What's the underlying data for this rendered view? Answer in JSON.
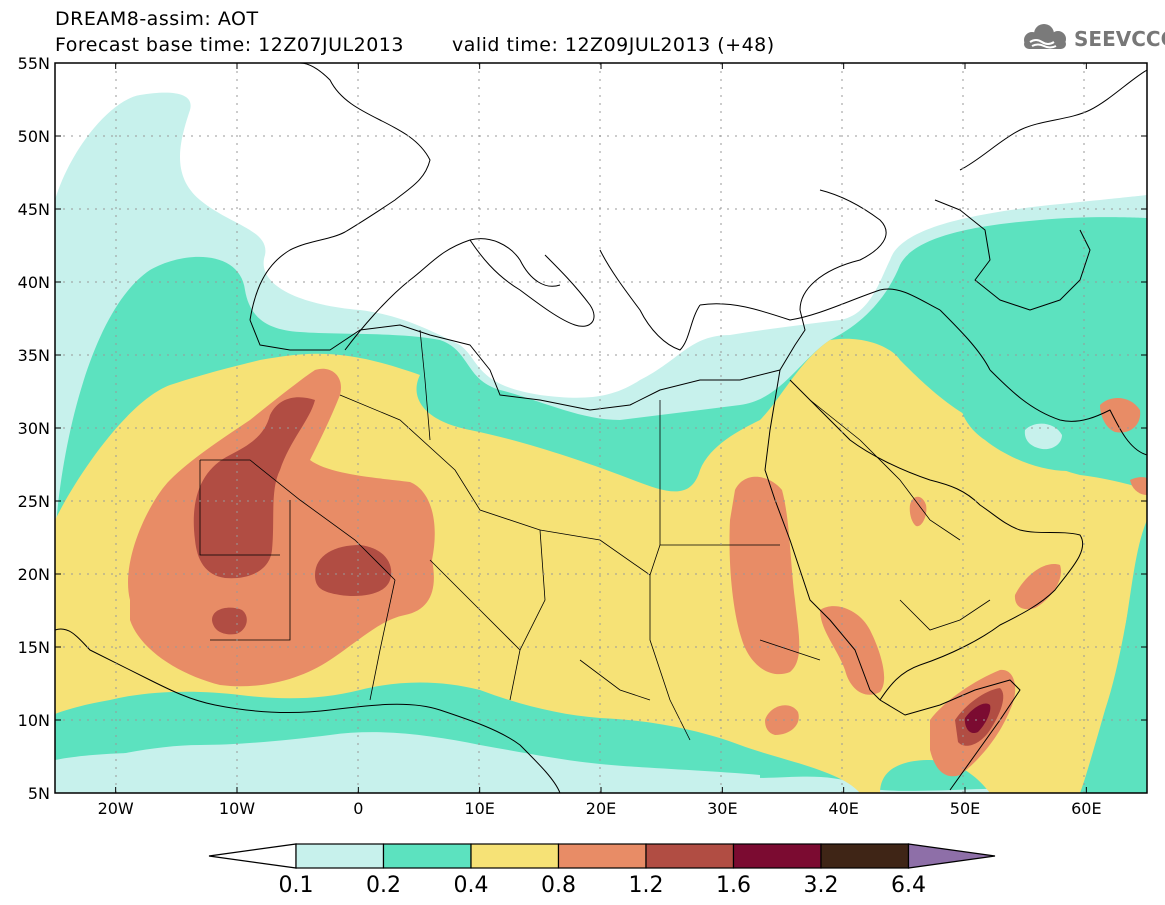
{
  "header": {
    "title_line1": "DREAM8-assim: AOT",
    "base_time_label": "Forecast base time: 12Z07JUL2013",
    "valid_time_label": "valid time: 12Z09JUL2013 (+48)"
  },
  "logo": {
    "text": "SEEVCCC",
    "icon": "cloud-icon"
  },
  "map": {
    "lon_range": [
      -25,
      65
    ],
    "lat_range": [
      5,
      55
    ],
    "lat_ticks": [
      "55N",
      "50N",
      "45N",
      "40N",
      "35N",
      "30N",
      "25N",
      "20N",
      "15N",
      "10N",
      "5N"
    ],
    "lon_ticks": [
      "20W",
      "10W",
      "0",
      "10E",
      "20E",
      "30E",
      "40E",
      "50E",
      "60E"
    ]
  },
  "legend": {
    "levels": [
      "0.1",
      "0.2",
      "0.4",
      "0.8",
      "1.2",
      "1.6",
      "3.2",
      "6.4"
    ],
    "colors": {
      "below": "#ffffff",
      "c1": "#c7f1ec",
      "c2": "#5ce2bf",
      "c3": "#f6e276",
      "c4": "#e88c66",
      "c5": "#b14d43",
      "c6": "#7b0b31",
      "c7": "#3f2516",
      "above": "#8e6fa8"
    }
  }
}
